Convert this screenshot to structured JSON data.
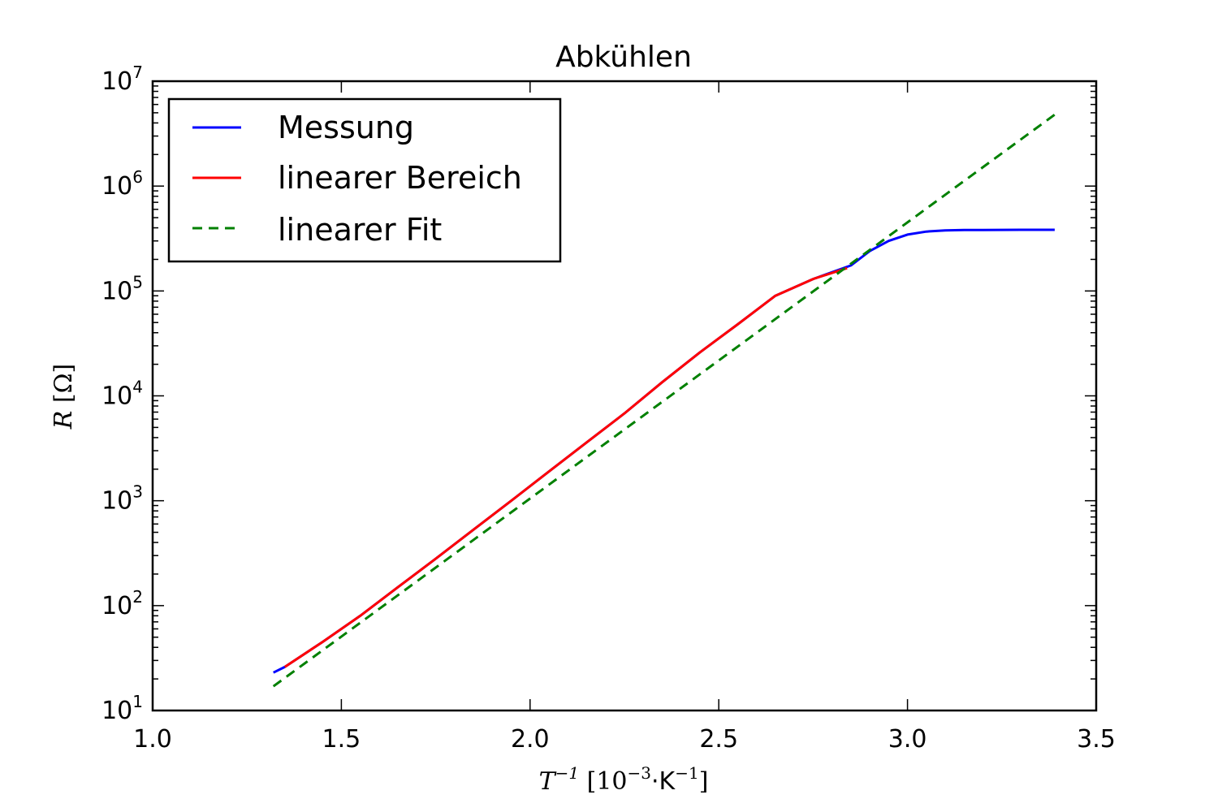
{
  "chart_data": {
    "type": "line",
    "title": "Abkühlen",
    "xlabel": {
      "symbol": "T",
      "symbol_exp": "−1",
      "unit_open": " [10",
      "unit_exp1": "−3",
      "unit_mid": "·K",
      "unit_exp2": "−1",
      "unit_close": "]"
    },
    "ylabel": {
      "symbol": "R",
      "unit": " [Ω]"
    },
    "xlim": [
      1.0,
      3.5
    ],
    "ylim": [
      10,
      10000000
    ],
    "yscale": "log",
    "grid": false,
    "legend_position": "top-left",
    "x_ticks": [
      "1.0",
      "1.5",
      "2.0",
      "2.5",
      "3.0",
      "3.5"
    ],
    "x_tick_values": [
      1.0,
      1.5,
      2.0,
      2.5,
      3.0,
      3.5
    ],
    "y_ticks": [
      {
        "value": 10,
        "base": "10",
        "exp": "1"
      },
      {
        "value": 100,
        "base": "10",
        "exp": "2"
      },
      {
        "value": 1000,
        "base": "10",
        "exp": "3"
      },
      {
        "value": 10000,
        "base": "10",
        "exp": "4"
      },
      {
        "value": 100000,
        "base": "10",
        "exp": "5"
      },
      {
        "value": 1000000,
        "base": "10",
        "exp": "6"
      },
      {
        "value": 10000000,
        "base": "10",
        "exp": "7"
      }
    ],
    "series": [
      {
        "name": "Messung",
        "color": "#0000ff",
        "style": "solid",
        "x": [
          1.32,
          1.35,
          1.45,
          1.55,
          1.65,
          1.75,
          1.85,
          1.95,
          2.05,
          2.15,
          2.25,
          2.35,
          2.45,
          2.55,
          2.65,
          2.75,
          2.85,
          2.9,
          2.95,
          3.0,
          3.05,
          3.1,
          3.15,
          3.2,
          3.3,
          3.39
        ],
        "y": [
          23,
          26,
          45,
          80,
          150,
          280,
          530,
          1000,
          1900,
          3600,
          6800,
          13500,
          26000,
          48000,
          90000,
          130000,
          175000,
          240000,
          300000,
          345000,
          368000,
          378000,
          381000,
          382000,
          383000,
          383000
        ]
      },
      {
        "name": "linearer Bereich",
        "color": "#ff0000",
        "style": "solid",
        "x": [
          1.35,
          1.45,
          1.55,
          1.65,
          1.75,
          1.85,
          1.95,
          2.05,
          2.15,
          2.25,
          2.35,
          2.45,
          2.55,
          2.65,
          2.75,
          2.84
        ],
        "y": [
          26,
          45,
          80,
          150,
          280,
          530,
          1000,
          1900,
          3600,
          6800,
          13500,
          26000,
          48000,
          90000,
          130000,
          165000
        ]
      },
      {
        "name": "linearer Fit",
        "color": "#008000",
        "style": "dashed",
        "x": [
          1.32,
          3.39
        ],
        "y": [
          17,
          4800000
        ]
      }
    ]
  }
}
